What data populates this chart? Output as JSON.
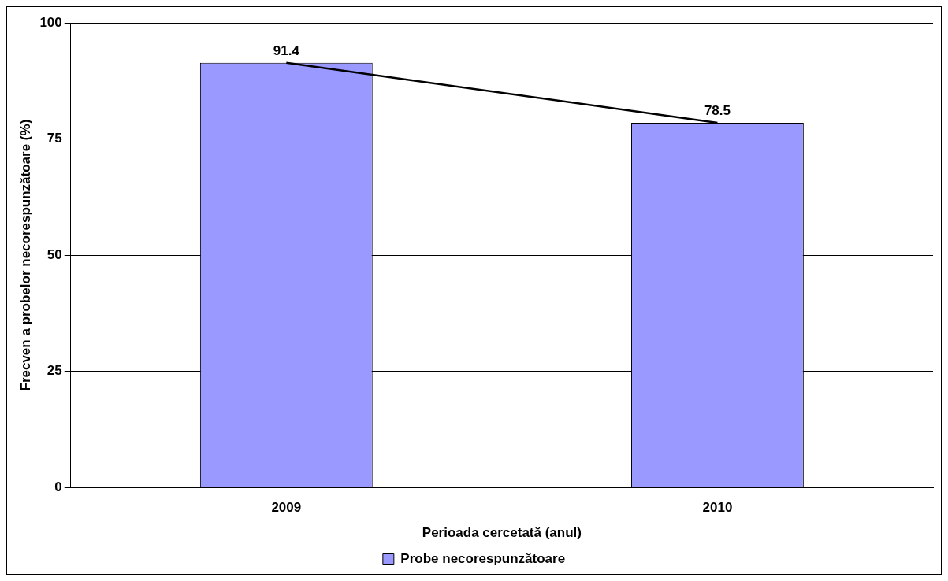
{
  "chart_data": {
    "type": "bar",
    "xlabel": "Perioada cercetată (anul)",
    "ylabel": "Frecven a probelor necorespunzătoare (%)",
    "categories": [
      "2009",
      "2010"
    ],
    "series": [
      {
        "name": "Probe necorespunzătoare",
        "color": "#9999ff",
        "values": [
          91.4,
          78.5
        ],
        "value_labels": [
          "91.4",
          "78.5"
        ]
      },
      {
        "type": "line",
        "color": "#000000",
        "values": [
          91.4,
          78.5
        ]
      }
    ],
    "ylim": [
      0,
      100
    ],
    "yticks": [
      0,
      25,
      50,
      75,
      100
    ],
    "grid": "y",
    "legend": "bottom",
    "marker": "none"
  }
}
